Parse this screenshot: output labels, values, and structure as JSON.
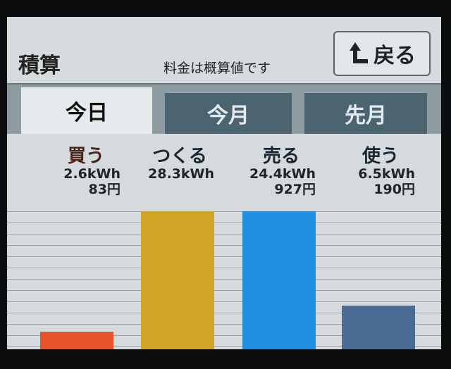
{
  "header": {
    "title": "積算",
    "note": "料金は概算値です",
    "back_label": "戻る",
    "back_icon": "return-arrow-icon"
  },
  "tabs": [
    {
      "label": "今日",
      "active": true
    },
    {
      "label": "今月",
      "active": false
    },
    {
      "label": "先月",
      "active": false
    }
  ],
  "chart_data": {
    "type": "bar",
    "categories": [
      "買う",
      "つくる",
      "売る",
      "使う"
    ],
    "series": [
      {
        "name": "energy",
        "values": [
          2.6,
          28.3,
          24.4,
          6.5
        ],
        "labels": [
          "2.6kWh",
          "28.3kWh",
          "24.4kWh",
          "6.5kWh"
        ]
      },
      {
        "name": "cost",
        "labels": [
          "83円",
          "",
          "927円",
          "190円"
        ]
      }
    ],
    "colors": [
      "#e8532c",
      "#d3a526",
      "#1f8fe0",
      "#4d6c94"
    ],
    "label_colors": [
      "#4a2418",
      "#1b2630",
      "#1b2630",
      "#1b2630"
    ],
    "grid": true
  }
}
